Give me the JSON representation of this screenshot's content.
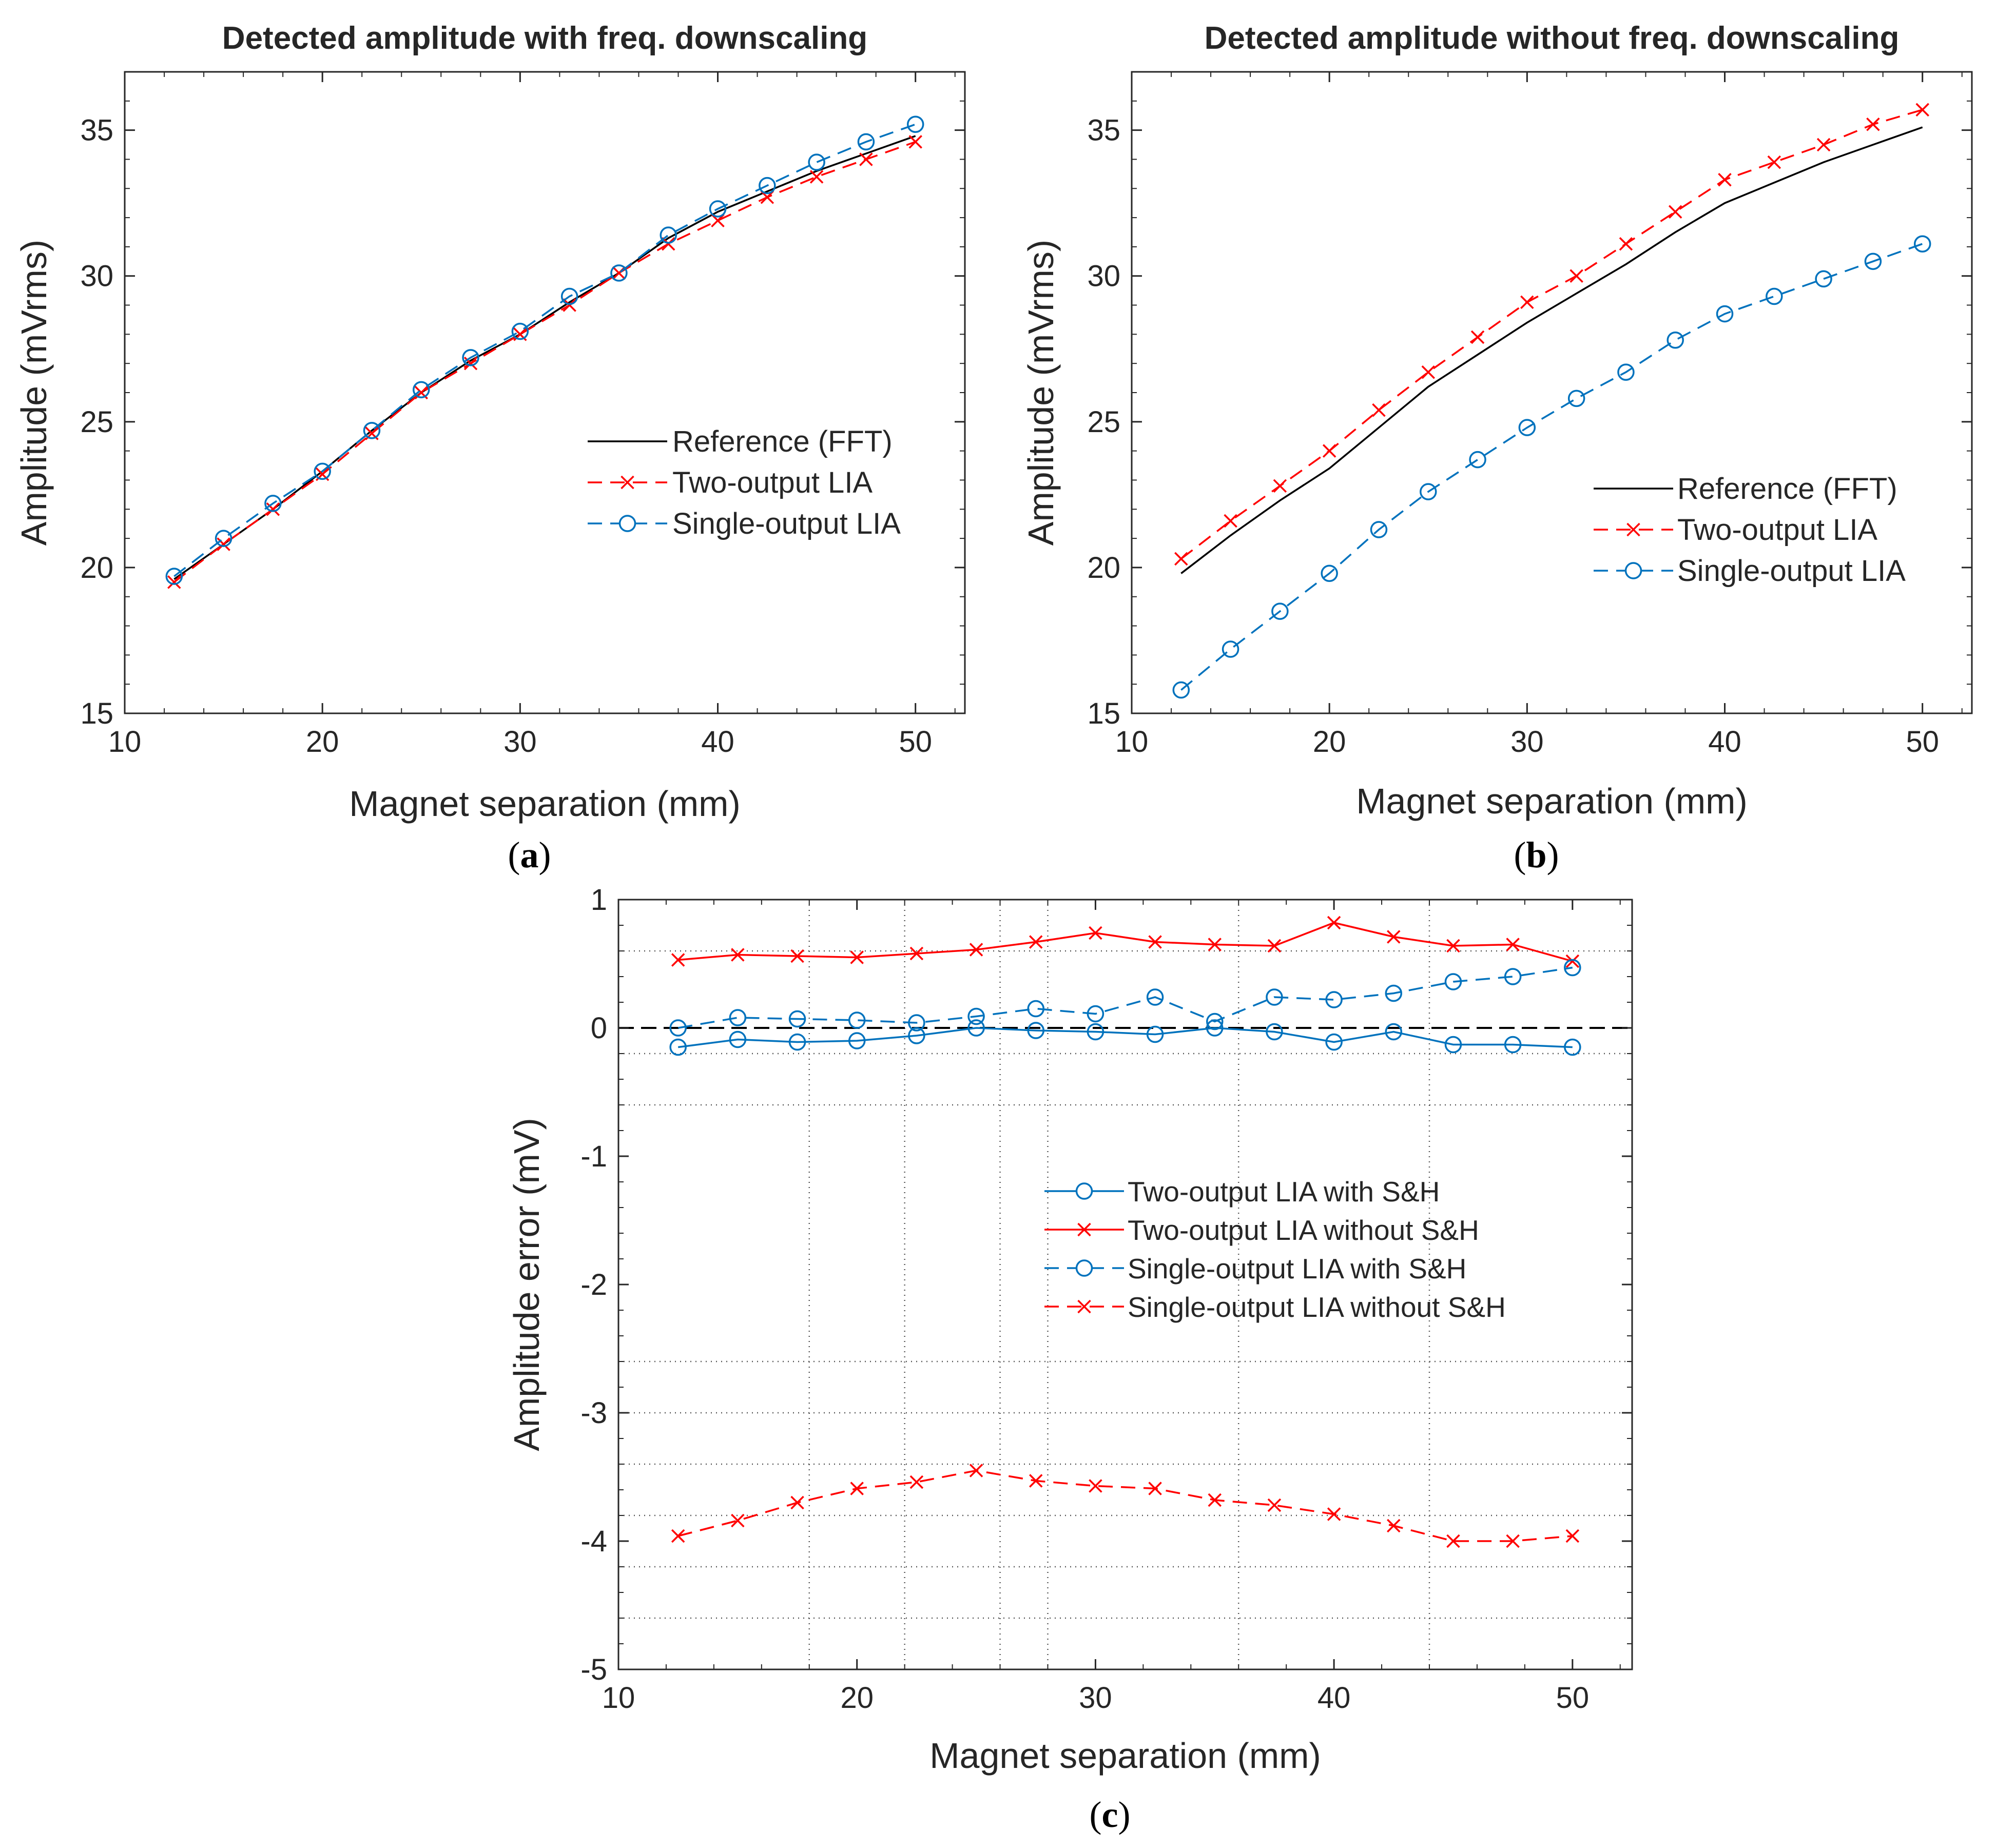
{
  "chart_data": [
    {
      "id": "a",
      "type": "line",
      "title": "Detected amplitude with freq. downscaling",
      "xlabel": "Magnet separation (mm)",
      "ylabel": "Amplitude (mVrms)",
      "xlim": [
        10,
        52.5
      ],
      "ylim": [
        15,
        37
      ],
      "xticks": [
        10,
        20,
        30,
        40,
        50
      ],
      "yticks": [
        15,
        20,
        25,
        30,
        35
      ],
      "grid": false,
      "legend_position": "center-right",
      "caption_letter": "a",
      "x": [
        12.5,
        15,
        17.5,
        20,
        22.5,
        25,
        27.5,
        30,
        32.5,
        35,
        37.5,
        40,
        42.5,
        45,
        47.5,
        50
      ],
      "series": [
        {
          "name": "Reference (FFT)",
          "color": "#000000",
          "dash": "solid",
          "marker": "none",
          "values": [
            19.6,
            20.8,
            22.0,
            23.3,
            24.7,
            26.0,
            27.1,
            28.0,
            29.1,
            30.1,
            31.3,
            32.2,
            32.9,
            33.6,
            34.2,
            34.8
          ]
        },
        {
          "name": "Two-output LIA",
          "color": "#ff0000",
          "dash": "dashed",
          "marker": "x",
          "values": [
            19.5,
            20.8,
            22.0,
            23.2,
            24.6,
            26.0,
            27.0,
            28.0,
            29.0,
            30.1,
            31.1,
            31.9,
            32.7,
            33.4,
            34.0,
            34.6
          ]
        },
        {
          "name": "Single-output LIA",
          "color": "#0072bd",
          "dash": "dashed",
          "marker": "o",
          "values": [
            19.7,
            21.0,
            22.2,
            23.3,
            24.7,
            26.1,
            27.2,
            28.1,
            29.3,
            30.1,
            31.4,
            32.3,
            33.1,
            33.9,
            34.6,
            35.2
          ]
        }
      ]
    },
    {
      "id": "b",
      "type": "line",
      "title": "Detected amplitude without freq. downscaling",
      "xlabel": "Magnet separation (mm)",
      "ylabel": "Amplitude (mVrms)",
      "xlim": [
        10,
        52.5
      ],
      "ylim": [
        15,
        37
      ],
      "xticks": [
        10,
        20,
        30,
        40,
        50
      ],
      "yticks": [
        15,
        20,
        25,
        30,
        35
      ],
      "grid": false,
      "legend_position": "center-right",
      "caption_letter": "b",
      "x": [
        12.5,
        15,
        17.5,
        20,
        22.5,
        25,
        27.5,
        30,
        32.5,
        35,
        37.5,
        40,
        42.5,
        45,
        47.5,
        50
      ],
      "series": [
        {
          "name": "Reference (FFT)",
          "color": "#000000",
          "dash": "solid",
          "marker": "none",
          "values": [
            19.8,
            21.1,
            22.3,
            23.4,
            24.8,
            26.2,
            27.3,
            28.4,
            29.4,
            30.4,
            31.5,
            32.5,
            33.2,
            33.9,
            34.5,
            35.1
          ]
        },
        {
          "name": "Two-output LIA",
          "color": "#ff0000",
          "dash": "dashed",
          "marker": "x",
          "values": [
            20.3,
            21.6,
            22.8,
            24.0,
            25.4,
            26.7,
            27.9,
            29.1,
            30.0,
            31.1,
            32.2,
            33.3,
            33.9,
            34.5,
            35.2,
            35.7
          ]
        },
        {
          "name": "Single-output LIA",
          "color": "#0072bd",
          "dash": "dashed",
          "marker": "o",
          "values": [
            15.8,
            17.2,
            18.5,
            19.8,
            21.3,
            22.6,
            23.7,
            24.8,
            25.8,
            26.7,
            27.8,
            28.7,
            29.3,
            29.9,
            30.5,
            31.1
          ]
        }
      ]
    },
    {
      "id": "c",
      "type": "line",
      "title": "",
      "xlabel": "Magnet separation (mm)",
      "ylabel": "Amplitude error (mV)",
      "xlim": [
        10,
        52.5
      ],
      "ylim": [
        -5,
        1
      ],
      "xticks": [
        10,
        20,
        30,
        40,
        50
      ],
      "yticks": [
        -5,
        -4,
        -3,
        -2,
        -1,
        0,
        1
      ],
      "grid": "dotted (irregular)",
      "zero_line": "dashed black",
      "legend_position": "center",
      "caption_letter": "c",
      "x": [
        12.5,
        15,
        17.5,
        20,
        22.5,
        25,
        27.5,
        30,
        32.5,
        35,
        37.5,
        40,
        42.5,
        45,
        47.5,
        50
      ],
      "series": [
        {
          "name": "Two-output LIA with S&H",
          "color": "#0072bd",
          "dash": "solid",
          "marker": "o",
          "values": [
            -0.15,
            -0.09,
            -0.11,
            -0.1,
            -0.06,
            0.0,
            -0.02,
            -0.03,
            -0.05,
            0.0,
            -0.03,
            -0.11,
            -0.03,
            -0.13,
            -0.13,
            -0.15
          ]
        },
        {
          "name": "Two-output LIA without S&H",
          "color": "#ff0000",
          "dash": "solid",
          "marker": "x",
          "values": [
            0.53,
            0.57,
            0.56,
            0.55,
            0.58,
            0.61,
            0.67,
            0.74,
            0.67,
            0.65,
            0.64,
            0.82,
            0.71,
            0.64,
            0.65,
            0.52
          ]
        },
        {
          "name": "Single-output LIA with S&H",
          "color": "#0072bd",
          "dash": "dashed",
          "marker": "o",
          "values": [
            0.0,
            0.08,
            0.07,
            0.06,
            0.04,
            0.09,
            0.15,
            0.11,
            0.24,
            0.05,
            0.24,
            0.22,
            0.27,
            0.36,
            0.4,
            0.47
          ]
        },
        {
          "name": "Single-output LIA without S&H",
          "color": "#ff0000",
          "dash": "dashed",
          "marker": "x",
          "values": [
            -3.96,
            -3.84,
            -3.7,
            -3.59,
            -3.54,
            -3.45,
            -3.53,
            -3.57,
            -3.59,
            -3.68,
            -3.72,
            -3.79,
            -3.88,
            -4.0,
            -4.0,
            -3.96
          ]
        }
      ]
    }
  ]
}
